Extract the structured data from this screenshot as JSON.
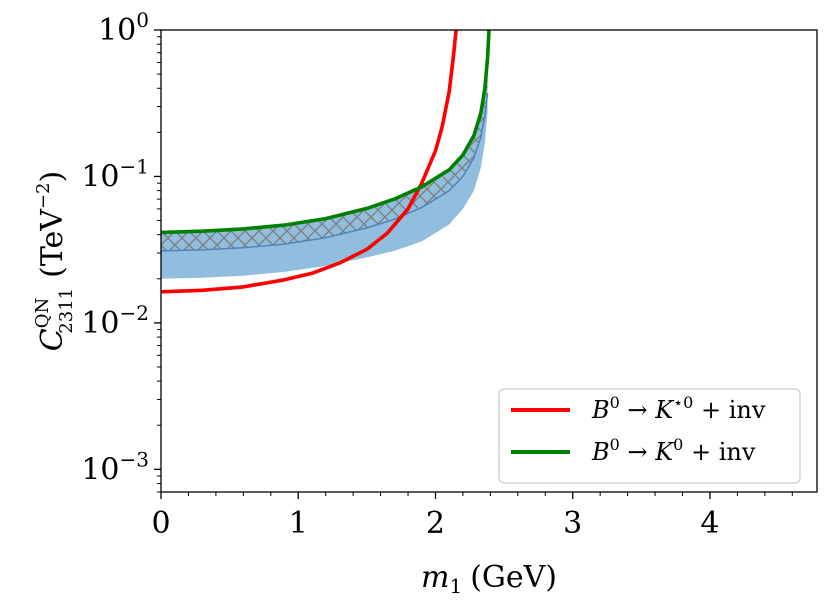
{
  "chart_data": {
    "type": "line",
    "title": "",
    "xlabel": {
      "symbol": "m",
      "sub": "1",
      "unit": "(GeV)"
    },
    "ylabel": {
      "symbol": "C",
      "sup": "QN",
      "sub": "2311",
      "unit_base": "(TeV",
      "unit_exp": "−2",
      "unit_close": ")"
    },
    "xlim": [
      0,
      4.78
    ],
    "ylim": [
      0.0007,
      1.0
    ],
    "yscale": "log",
    "xticks": [
      {
        "value": 0,
        "label": "0"
      },
      {
        "value": 1,
        "label": "1"
      },
      {
        "value": 2,
        "label": "2"
      },
      {
        "value": 3,
        "label": "3"
      },
      {
        "value": 4,
        "label": "4"
      }
    ],
    "yticks": [
      {
        "value": 1.0,
        "base": "10",
        "exp": "0"
      },
      {
        "value": 0.1,
        "base": "10",
        "exp": "−1"
      },
      {
        "value": 0.01,
        "base": "10",
        "exp": "−2"
      },
      {
        "value": 0.001,
        "base": "10",
        "exp": "−3"
      }
    ],
    "series": [
      {
        "name": "B0 -> K*0 + inv",
        "legend": {
          "base": "B",
          "base_sup": "0",
          "arrow": " → ",
          "target": "K",
          "target_sup": "⋆0",
          "tail": " + inv"
        },
        "color": "#ff0000",
        "x": [
          0,
          0.3,
          0.6,
          0.9,
          1.1,
          1.3,
          1.5,
          1.65,
          1.8,
          1.9,
          2.0,
          2.05,
          2.1,
          2.13,
          2.15
        ],
        "y": [
          0.0163,
          0.0167,
          0.0176,
          0.0197,
          0.0218,
          0.0256,
          0.0318,
          0.041,
          0.06,
          0.09,
          0.15,
          0.22,
          0.38,
          0.65,
          1.0
        ]
      },
      {
        "name": "B0 -> K0 + inv",
        "legend": {
          "base": "B",
          "base_sup": "0",
          "arrow": " → ",
          "target": "K",
          "target_sup": "0",
          "tail": " + inv"
        },
        "color": "#008000",
        "x": [
          0,
          0.3,
          0.6,
          0.9,
          1.2,
          1.5,
          1.7,
          1.9,
          2.1,
          2.2,
          2.28,
          2.33,
          2.36,
          2.38,
          2.39
        ],
        "y": [
          0.0415,
          0.0423,
          0.0438,
          0.0465,
          0.0515,
          0.0605,
          0.07,
          0.085,
          0.111,
          0.14,
          0.19,
          0.27,
          0.4,
          0.65,
          1.0
        ]
      }
    ],
    "bands": [
      {
        "name": "blue uncertainty band",
        "color": "#7eb2d9",
        "x": [
          0,
          0.3,
          0.6,
          0.9,
          1.2,
          1.5,
          1.7,
          1.9,
          2.1,
          2.2,
          2.28,
          2.33,
          2.36,
          2.38
        ],
        "upper": [
          0.041,
          0.0418,
          0.0433,
          0.046,
          0.051,
          0.0595,
          0.069,
          0.083,
          0.108,
          0.135,
          0.18,
          0.25,
          0.35,
          0.48
        ],
        "lower": [
          0.02,
          0.0203,
          0.021,
          0.0223,
          0.0245,
          0.028,
          0.031,
          0.036,
          0.047,
          0.06,
          0.08,
          0.115,
          0.17,
          0.28
        ]
      },
      {
        "name": "hatched band",
        "color": "#808080",
        "x": [
          0,
          0.3,
          0.6,
          0.9,
          1.2,
          1.5,
          1.7,
          1.9,
          2.1,
          2.2,
          2.28,
          2.33,
          2.36,
          2.38
        ],
        "upper": [
          0.0405,
          0.0413,
          0.0428,
          0.0455,
          0.0505,
          0.059,
          0.068,
          0.082,
          0.106,
          0.133,
          0.178,
          0.245,
          0.34,
          0.46
        ],
        "lower": [
          0.031,
          0.0315,
          0.0326,
          0.0345,
          0.0382,
          0.0445,
          0.051,
          0.0615,
          0.08,
          0.1,
          0.134,
          0.185,
          0.26,
          0.37
        ]
      }
    ],
    "legend_position": "lower right"
  }
}
